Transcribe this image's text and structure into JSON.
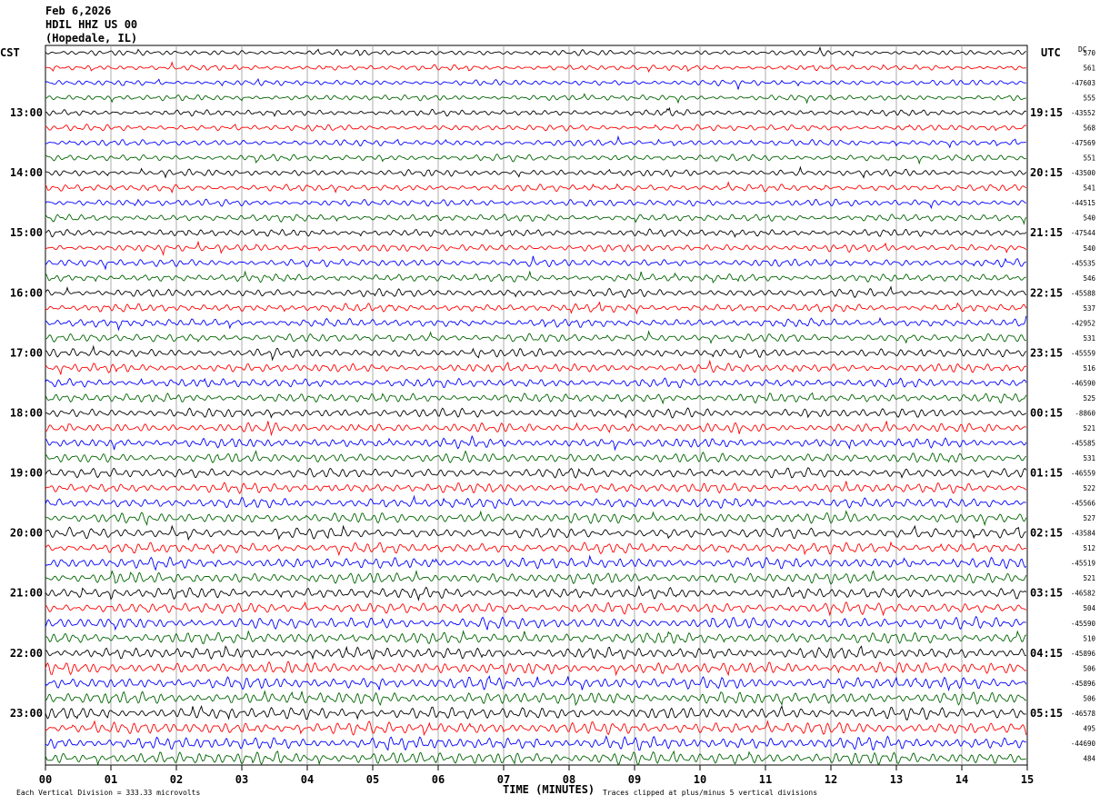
{
  "header": {
    "date": "Feb 6,2026",
    "station": "HDIL HHZ US 00",
    "location": "(Hopedale, IL)",
    "left_zone": "CST",
    "right_zone": "UTC",
    "dc_label": "DC"
  },
  "footer": {
    "xlabel": "TIME (MINUTES)",
    "scale_note": "Each Vertical Division =  333.33 microvolts",
    "clip_note": "Traces clipped at plus/minus 5 vertical divisions"
  },
  "chart_data": {
    "type": "line",
    "title": "HDIL HHZ US 00",
    "xlabel": "TIME (MINUTES)",
    "xlim": [
      0,
      15
    ],
    "x_ticks": [
      "00",
      "01",
      "02",
      "03",
      "04",
      "05",
      "06",
      "07",
      "08",
      "09",
      "10",
      "11",
      "12",
      "13",
      "14",
      "15"
    ],
    "trace_colors": [
      "#000000",
      "#ff0000",
      "#0000ff",
      "#006400"
    ],
    "trace_count": 48,
    "left_hour_labels": [
      "13:00",
      "14:00",
      "15:00",
      "16:00",
      "17:00",
      "18:00",
      "19:00",
      "20:00",
      "21:00",
      "22:00",
      "23:00"
    ],
    "right_hour_labels": [
      "19:15",
      "20:15",
      "21:15",
      "22:15",
      "23:15",
      "00:15",
      "01:15",
      "02:15",
      "03:15",
      "04:15",
      "05:15"
    ],
    "dc_offsets": [
      "570",
      "561",
      "-47603",
      "555",
      "-43552",
      "568",
      "-47569",
      "551",
      "-43500",
      "541",
      "-44515",
      "540",
      "-47544",
      "540",
      "-45535",
      "546",
      "-45588",
      "537",
      "-42952",
      "531",
      "-45559",
      "516",
      "-46590",
      "525",
      "-8860",
      "521",
      "-45585",
      "531",
      "-46559",
      "522",
      "-45566",
      "527",
      "-43584",
      "512",
      "-45519",
      "521",
      "-46582",
      "504",
      "-45590",
      "510",
      "-45896",
      "506",
      "-45896",
      "506",
      "-46578",
      "495",
      "-44690",
      "484"
    ],
    "clip_divisions": 5,
    "microvolts_per_division": 333.33
  }
}
